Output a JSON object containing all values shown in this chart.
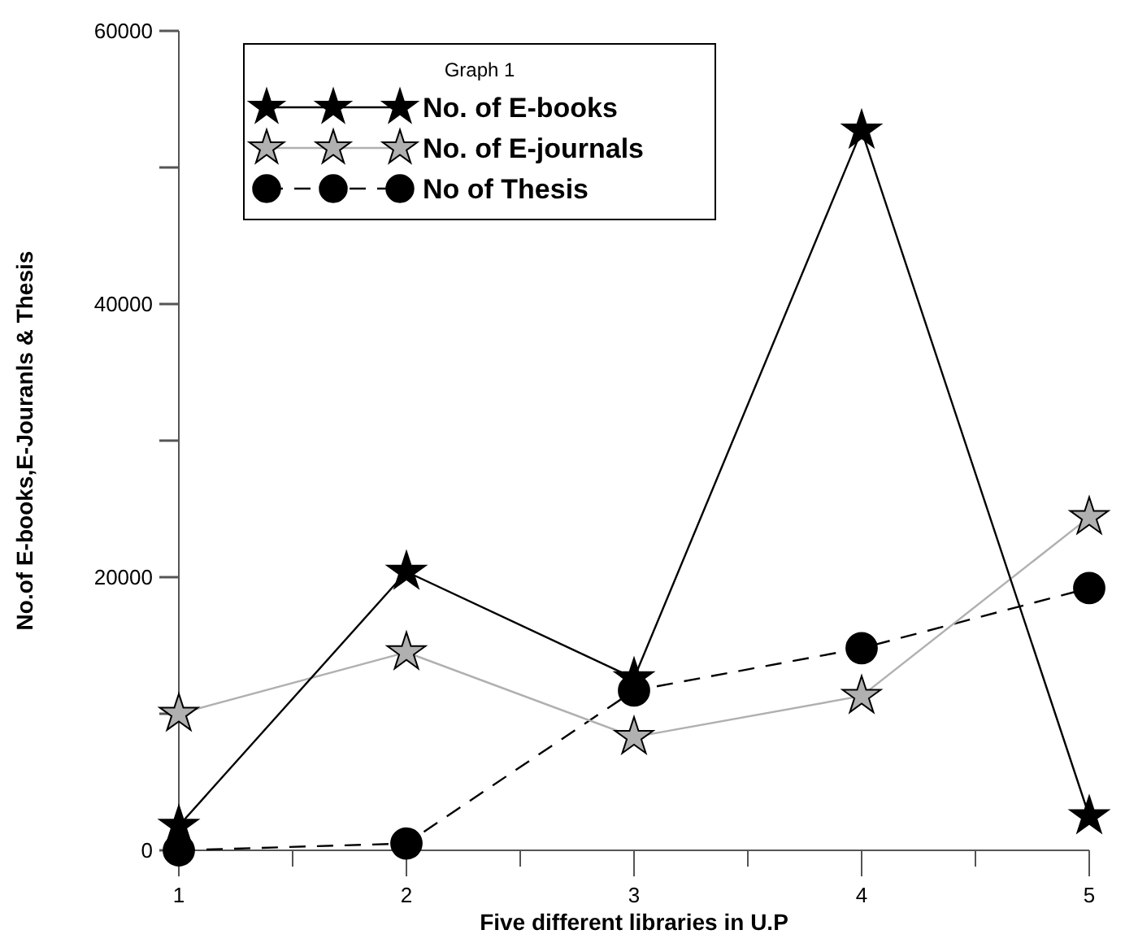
{
  "chart_data": {
    "type": "line",
    "legend_title": "Graph 1",
    "xlabel": "Five different libraries in U.P",
    "ylabel": "No.of E-books,E-Jouranls & Thesis",
    "x": [
      1,
      2,
      3,
      4,
      5
    ],
    "xlim": [
      1,
      5
    ],
    "xticks": [
      1,
      {
        "value": 1.5,
        "label": null
      },
      2,
      {
        "value": 2.5,
        "label": null
      },
      3,
      {
        "value": 3.5,
        "label": null
      },
      4,
      {
        "value": 4.5,
        "label": null
      },
      5
    ],
    "ylim": [
      0,
      60000
    ],
    "yticks": [
      0,
      {
        "value": 10000,
        "label": null
      },
      20000,
      {
        "value": 30000,
        "label": null
      },
      40000,
      {
        "value": 50000,
        "label": null
      },
      60000
    ],
    "grid": false,
    "legend": "top left",
    "series": [
      {
        "name": "No. of E-books",
        "color": "#000000",
        "marker": "star",
        "line_style": "solid",
        "values": [
          1800,
          20400,
          12600,
          52700,
          2500
        ]
      },
      {
        "name": "No. of E-journals",
        "color": "#b0b0b0",
        "marker": "star",
        "line_style": "solid",
        "values": [
          10000,
          14500,
          8300,
          11300,
          24400
        ]
      },
      {
        "name": "No of Thesis",
        "color": "#000000",
        "marker": "circle",
        "line_style": "dashed",
        "values": [
          0,
          500,
          11700,
          14800,
          19200
        ]
      }
    ]
  }
}
